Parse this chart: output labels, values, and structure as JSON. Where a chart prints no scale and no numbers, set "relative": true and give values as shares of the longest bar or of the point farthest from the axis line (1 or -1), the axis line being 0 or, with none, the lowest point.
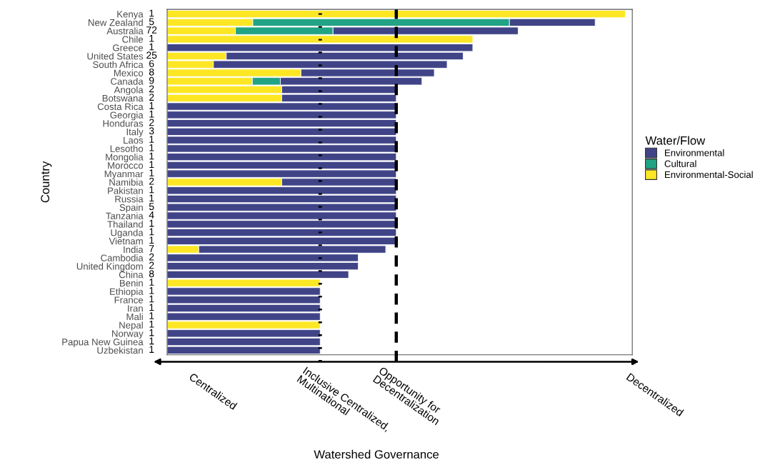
{
  "chart_data": {
    "type": "bar",
    "orientation": "horizontal",
    "stacked": true,
    "relative": true,
    "ylabel": "Country",
    "legend_title": "Water/Flow",
    "legend": "right",
    "grid": false,
    "categories": [
      "Kenya",
      "New Zealand",
      "Australia",
      "Chile",
      "Greece",
      "United States",
      "South Africa",
      "Mexico",
      "Canada",
      "Angola",
      "Botswana",
      "Costa Rica",
      "Georgia",
      "Honduras",
      "Italy",
      "Laos",
      "Lesotho",
      "Mongolia",
      "Morocco",
      "Myanmar",
      "Namibia",
      "Pakistan",
      "Russia",
      "Spain",
      "Tanzania",
      "Thailand",
      "Uganda",
      "Vietnam",
      "India",
      "Cambodia",
      "United Kingdom",
      "China",
      "Benin",
      "Ethiopia",
      "France",
      "Iran",
      "Mali",
      "Nepal",
      "Norway",
      "Papua New Guinea",
      "Uzbekistan"
    ],
    "series": [
      {
        "name": "Environmental-Social",
        "color": "#fde725",
        "values": [
          1.0,
          0.187,
          0.149,
          0.667,
          null,
          0.129,
          0.101,
          0.292,
          0.186,
          0.25,
          0.25,
          null,
          null,
          null,
          null,
          null,
          null,
          null,
          null,
          null,
          0.25,
          null,
          null,
          null,
          null,
          null,
          null,
          null,
          0.069,
          null,
          null,
          null,
          0.334,
          null,
          null,
          null,
          null,
          0.334,
          null,
          null,
          null
        ]
      },
      {
        "name": "Cultural",
        "color": "#21a384",
        "values": [
          null,
          0.56,
          0.213,
          null,
          null,
          null,
          null,
          null,
          0.061,
          null,
          null,
          null,
          null,
          null,
          null,
          null,
          null,
          null,
          null,
          null,
          null,
          null,
          null,
          null,
          null,
          null,
          null,
          null,
          null,
          null,
          null,
          null,
          null,
          null,
          null,
          null,
          null,
          null,
          null,
          null,
          null
        ]
      },
      {
        "name": "Environmental",
        "color": "#404487",
        "values": [
          null,
          0.187,
          0.404,
          null,
          0.667,
          0.517,
          0.51,
          0.291,
          0.309,
          0.25,
          0.25,
          0.5,
          0.5,
          0.5,
          0.5,
          0.5,
          0.5,
          0.5,
          0.5,
          0.5,
          0.25,
          0.5,
          0.5,
          0.5,
          0.5,
          0.5,
          0.5,
          0.5,
          0.408,
          0.417,
          0.417,
          0.396,
          null,
          0.334,
          0.334,
          0.334,
          0.334,
          null,
          0.334,
          0.334,
          0.334
        ]
      }
    ],
    "ref_lines": [
      {
        "axis": "x",
        "value": 0.334,
        "label": "Inclusive Centralized,\nMultinational",
        "color": "#000000",
        "line_style": "dotted"
      },
      {
        "axis": "x",
        "value": 0.5,
        "label": "Opportunity for\nDecentralization",
        "color": "#000000",
        "line_style": "dashed"
      }
    ],
    "annotations": [
      "Centralized",
      "Decentralized",
      "Watershed Governance",
      "1",
      "5",
      "72",
      "1",
      "1",
      "25",
      "6",
      "8",
      "9",
      "2",
      "2",
      "1",
      "1",
      "2",
      "3",
      "1",
      "1",
      "1",
      "1",
      "1",
      "2",
      "1",
      "1",
      "5",
      "4",
      "1",
      "1",
      "1",
      "7",
      "2",
      "2",
      "8",
      "1",
      "1",
      "1",
      "1",
      "1",
      "1",
      "1",
      "1",
      "1"
    ]
  }
}
